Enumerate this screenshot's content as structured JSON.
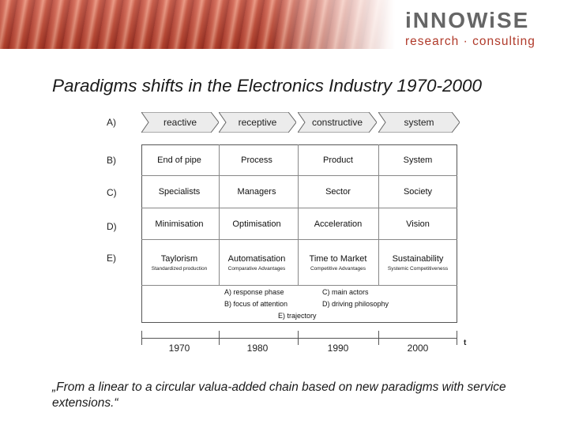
{
  "header": {
    "logo_main": "iNNOWiSE",
    "logo_sub": "research · consulting",
    "colors": {
      "banner": "#c0452f",
      "logo_main": "#666666",
      "logo_sub": "#b03a2a"
    }
  },
  "title": "Paradigms shifts in the Electronics Industry 1970-2000",
  "row_labels": [
    "A)",
    "B)",
    "C)",
    "D)",
    "E)"
  ],
  "phases": [
    "reactive",
    "receptive",
    "constructive",
    "system"
  ],
  "rows": {
    "B": [
      "End of pipe",
      "Process",
      "Product",
      "System"
    ],
    "C": [
      "Specialists",
      "Managers",
      "Sector",
      "Society"
    ],
    "D": [
      "Minimisation",
      "Optimisation",
      "Acceleration",
      "Vision"
    ],
    "E": [
      "Taylorism",
      "Automatisation",
      "Time to Market",
      "Sustainability"
    ],
    "E_sub": [
      "Standardized production",
      "Comparative Advantages",
      "Competitive Advantages",
      "Systemic Competitiveness"
    ]
  },
  "legend": {
    "a": "A) response phase",
    "b": "B) focus of attention",
    "c": "C) main actors",
    "d": "D) driving philosophy",
    "e": "E) trajectory"
  },
  "timeline": {
    "years": [
      "1970",
      "1980",
      "1990",
      "2000"
    ],
    "axis_label": "t"
  },
  "quote": "„From a linear to a circular valua-added chain based on new paradigms with service extensions.“"
}
